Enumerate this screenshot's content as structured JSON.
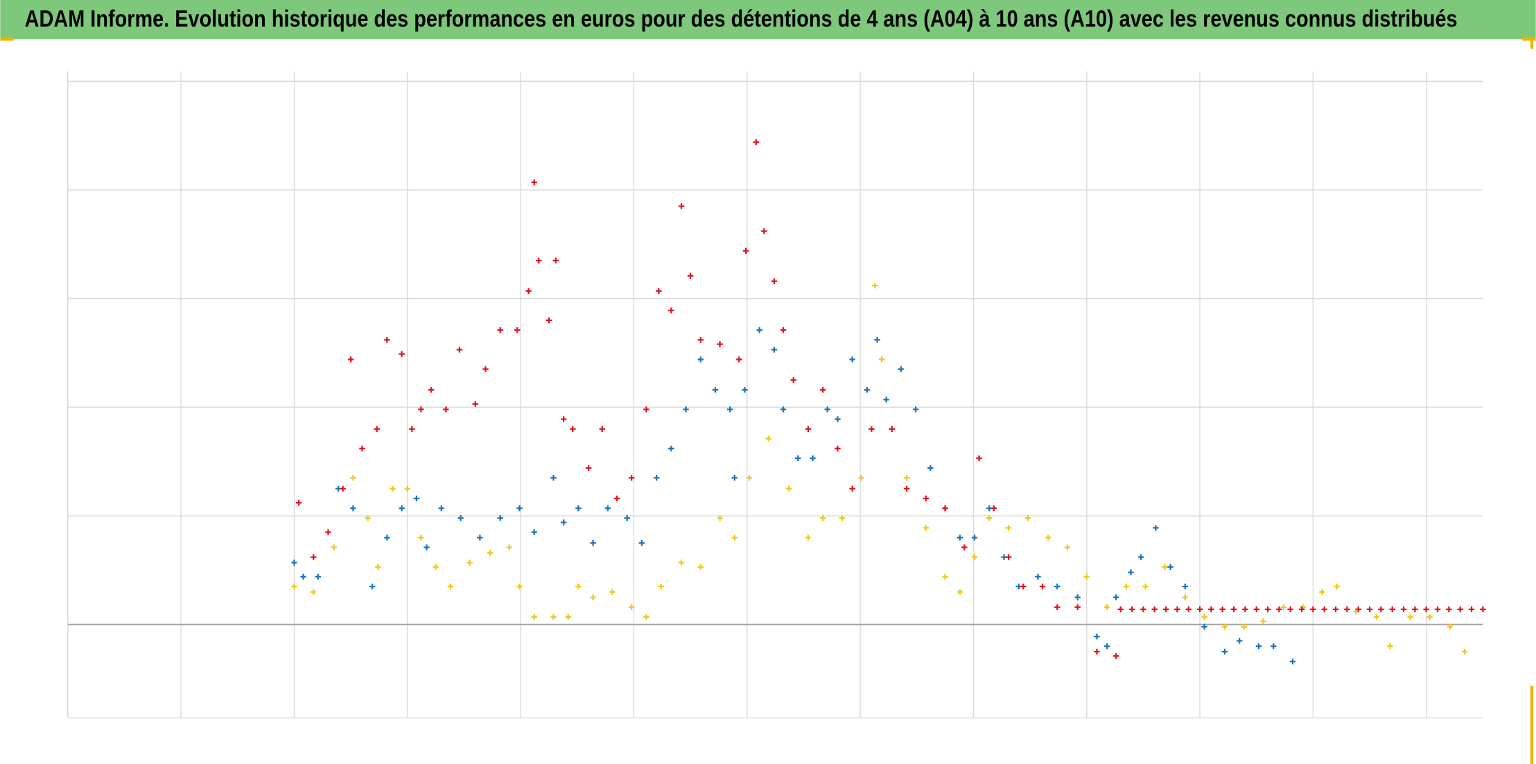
{
  "chart_data": {
    "type": "scatter",
    "title": "ADAM Informe. Evolution historique des performances en euros pour des détentions de 4 ans (A04) à 10 ans (A10) avec les revenus connus distribués",
    "xlim": [
      0,
      12.5
    ],
    "xticks": [
      0,
      1,
      2,
      3,
      4,
      5,
      6,
      7,
      8,
      9,
      10,
      11,
      12
    ],
    "ylim": [
      -0.86,
      5.09
    ],
    "yticks": [
      0,
      1,
      2,
      3,
      4,
      5
    ],
    "grid": true,
    "series": [
      {
        "color": "#f5c518",
        "x": [
          2.0,
          2.17,
          2.35,
          2.52,
          2.65,
          2.74,
          2.87,
          3.0,
          3.12,
          3.25,
          3.38,
          3.55,
          3.73,
          3.9,
          3.99,
          4.12,
          4.29,
          4.42,
          4.51,
          4.64,
          4.81,
          4.98,
          5.11,
          5.24,
          5.42,
          5.59,
          5.76,
          5.89,
          6.02,
          6.19,
          6.37,
          6.54,
          6.67,
          6.84,
          7.01,
          7.13,
          7.19,
          7.28,
          7.41,
          7.58,
          7.75,
          7.88,
          8.01,
          8.14,
          8.31,
          8.48,
          8.66,
          8.83,
          9.0,
          9.18,
          9.35,
          9.52,
          9.69,
          9.87,
          10.04,
          10.22,
          10.39,
          10.56,
          10.74,
          10.91,
          11.08,
          11.21,
          11.38,
          11.56,
          11.68,
          11.86,
          12.03,
          12.21,
          12.34
        ],
        "values": [
          0.35,
          0.3,
          0.71,
          1.35,
          0.98,
          0.53,
          1.25,
          1.25,
          0.8,
          0.53,
          0.35,
          0.57,
          0.66,
          0.71,
          0.35,
          0.07,
          0.07,
          0.07,
          0.35,
          0.25,
          0.3,
          0.16,
          0.07,
          0.35,
          0.57,
          0.53,
          0.98,
          0.8,
          1.35,
          1.71,
          1.25,
          0.8,
          0.98,
          0.98,
          1.35,
          3.12,
          2.44,
          1.8,
          1.35,
          0.89,
          0.44,
          0.3,
          0.62,
          0.98,
          0.89,
          0.98,
          0.8,
          0.71,
          0.44,
          0.16,
          0.35,
          0.35,
          0.53,
          0.25,
          0.07,
          -0.02,
          -0.02,
          0.03,
          0.16,
          0.16,
          0.3,
          0.35,
          0.12,
          0.07,
          -0.2,
          0.07,
          0.07,
          -0.02,
          -0.25
        ]
      },
      {
        "color": "#1a73c0",
        "x": [
          2.0,
          2.08,
          2.21,
          2.39,
          2.52,
          2.69,
          2.82,
          2.95,
          3.08,
          3.17,
          3.3,
          3.47,
          3.64,
          3.82,
          3.99,
          4.12,
          4.29,
          4.38,
          4.51,
          4.64,
          4.77,
          4.94,
          5.07,
          5.2,
          5.33,
          5.46,
          5.59,
          5.72,
          5.85,
          5.89,
          5.98,
          6.11,
          6.24,
          6.32,
          6.45,
          6.58,
          6.71,
          6.8,
          6.93,
          7.06,
          7.15,
          7.23,
          7.36,
          7.49,
          7.62,
          7.75,
          7.88,
          8.01,
          8.14,
          8.27,
          8.4,
          8.57,
          8.74,
          8.92,
          9.09,
          9.18,
          9.26,
          9.39,
          9.48,
          9.61,
          9.74,
          9.87,
          10.04,
          10.22,
          10.35,
          10.52,
          10.65,
          10.82
        ],
        "values": [
          0.57,
          0.44,
          0.44,
          1.25,
          1.07,
          0.35,
          0.8,
          1.07,
          1.16,
          0.71,
          1.07,
          0.98,
          0.8,
          0.98,
          1.07,
          0.85,
          1.35,
          0.94,
          1.07,
          0.75,
          1.07,
          0.98,
          0.75,
          1.35,
          1.62,
          1.98,
          2.44,
          2.16,
          1.98,
          1.35,
          2.16,
          2.71,
          2.53,
          1.98,
          1.53,
          1.53,
          1.98,
          1.89,
          2.44,
          2.16,
          2.62,
          2.07,
          2.35,
          1.98,
          1.44,
          1.07,
          0.8,
          0.8,
          1.07,
          0.62,
          0.35,
          0.44,
          0.35,
          0.25,
          -0.11,
          -0.2,
          0.25,
          0.48,
          0.62,
          0.89,
          0.53,
          0.35,
          -0.02,
          -0.25,
          -0.15,
          -0.2,
          -0.2,
          -0.34
        ]
      },
      {
        "color": "#e8101a",
        "x": [
          2.04,
          2.17,
          2.3,
          2.43,
          2.5,
          2.6,
          2.73,
          2.82,
          2.95,
          3.04,
          3.12,
          3.21,
          3.34,
          3.46,
          3.6,
          3.69,
          3.82,
          3.97,
          4.07,
          4.12,
          4.16,
          4.25,
          4.31,
          4.38,
          4.46,
          4.6,
          4.72,
          4.85,
          4.98,
          5.11,
          5.22,
          5.33,
          5.42,
          5.5,
          5.59,
          5.76,
          5.93,
          5.99,
          6.08,
          6.15,
          6.24,
          6.32,
          6.41,
          6.54,
          6.67,
          6.8,
          6.93,
          7.1,
          7.28,
          7.41,
          7.58,
          7.75,
          7.92,
          8.05,
          8.18,
          8.31,
          8.44,
          8.61,
          8.74,
          8.92,
          9.09,
          9.26,
          9.3,
          9.4,
          9.5,
          9.6,
          9.7,
          9.8,
          9.9,
          10.0,
          10.1,
          10.2,
          10.3,
          10.4,
          10.5,
          10.6,
          10.7,
          10.8,
          10.9,
          11.0,
          11.1,
          11.2,
          11.3,
          11.4,
          11.5,
          11.6,
          11.7,
          11.8,
          11.9,
          12.0,
          12.1,
          12.2,
          12.3,
          12.4,
          12.5
        ],
        "values": [
          1.12,
          0.62,
          0.85,
          1.25,
          2.44,
          1.62,
          1.8,
          2.62,
          2.49,
          1.8,
          1.98,
          2.16,
          1.98,
          2.53,
          2.03,
          2.35,
          2.71,
          2.71,
          3.07,
          4.07,
          3.35,
          2.8,
          3.35,
          1.89,
          1.8,
          1.44,
          1.8,
          1.16,
          1.35,
          1.98,
          3.07,
          2.89,
          3.85,
          3.21,
          2.62,
          2.58,
          2.44,
          3.44,
          4.44,
          3.62,
          3.16,
          2.71,
          2.25,
          1.8,
          2.16,
          1.62,
          1.25,
          1.8,
          1.8,
          1.25,
          1.16,
          1.07,
          0.71,
          1.53,
          1.07,
          0.62,
          0.35,
          0.35,
          0.16,
          0.16,
          -0.25,
          -0.29,
          0.14,
          0.14,
          0.14,
          0.14,
          0.14,
          0.14,
          0.14,
          0.14,
          0.14,
          0.14,
          0.14,
          0.14,
          0.14,
          0.14,
          0.14,
          0.14,
          0.14,
          0.14,
          0.14,
          0.14,
          0.14,
          0.14,
          0.14,
          0.14,
          0.14,
          0.14,
          0.14,
          0.14,
          0.14,
          0.14,
          0.14,
          0.14,
          0.14
        ]
      }
    ]
  }
}
